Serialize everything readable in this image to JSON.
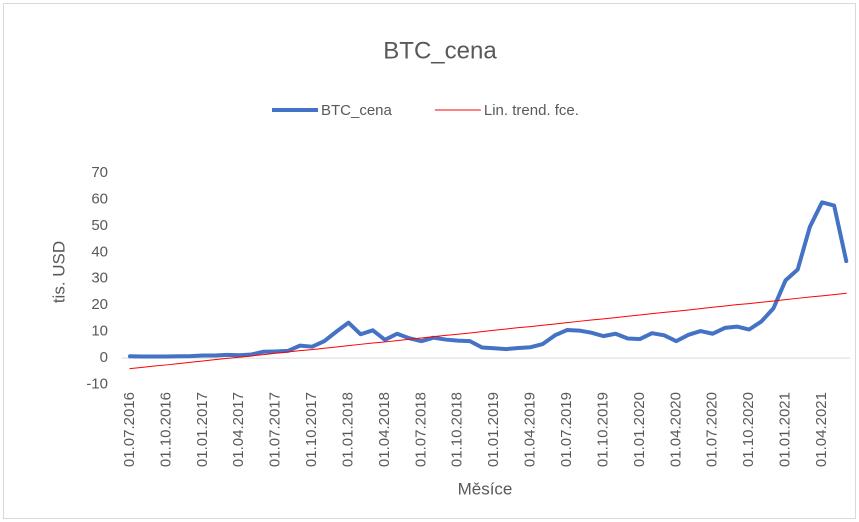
{
  "chart_data": {
    "type": "line",
    "title": "BTC_cena",
    "x_label": "Měsíce",
    "y_label": "tis. USD",
    "categories": [
      "01.07.2016",
      null,
      null,
      "01.10.2016",
      null,
      null,
      "01.01.2017",
      null,
      null,
      "01.04.2017",
      null,
      null,
      "01.07.2017",
      null,
      null,
      "01.10.2017",
      null,
      null,
      "01.01.2018",
      null,
      null,
      "01.04.2018",
      null,
      null,
      "01.07.2018",
      null,
      null,
      "01.10.2018",
      null,
      null,
      "01.01.2019",
      null,
      null,
      "01.04.2019",
      null,
      null,
      "01.07.2019",
      null,
      null,
      "01.10.2019",
      null,
      null,
      "01.01.2020",
      null,
      null,
      "01.04.2020",
      null,
      null,
      "01.07.2020",
      null,
      null,
      "01.10.2020",
      null,
      null,
      "01.01.2021",
      null,
      null,
      "01.04.2021",
      null,
      null
    ],
    "series": [
      {
        "name": "BTC_cena",
        "color": "#4472c4",
        "width": 4,
        "values": [
          0.67,
          0.58,
          0.6,
          0.61,
          0.7,
          0.75,
          0.97,
          0.97,
          1.19,
          1.08,
          1.35,
          2.4,
          2.5,
          2.7,
          4.7,
          4.3,
          6.4,
          10.0,
          13.4,
          9.0,
          10.5,
          6.9,
          9.2,
          7.5,
          6.4,
          7.7,
          7.0,
          6.6,
          6.4,
          4.0,
          3.7,
          3.4,
          3.8,
          4.1,
          5.3,
          8.6,
          10.6,
          10.4,
          9.6,
          8.3,
          9.2,
          7.4,
          7.2,
          9.4,
          8.6,
          6.4,
          8.8,
          10.2,
          9.2,
          11.4,
          11.9,
          10.8,
          13.8,
          18.8,
          29.4,
          33.5,
          49.6,
          58.9,
          57.7,
          36.7
        ]
      },
      {
        "name": "Lin. trend. fce.",
        "color": "#ff0000",
        "width": 1,
        "values": [
          -4.0,
          -3.5,
          -3.0,
          -2.6,
          -2.1,
          -1.6,
          -1.1,
          -0.6,
          -0.1,
          0.3,
          0.8,
          1.3,
          1.8,
          2.3,
          2.8,
          3.2,
          3.7,
          4.2,
          4.7,
          5.2,
          5.7,
          6.1,
          6.6,
          7.1,
          7.6,
          8.1,
          8.6,
          9.0,
          9.5,
          10.0,
          10.5,
          11.0,
          11.5,
          11.9,
          12.4,
          12.9,
          13.4,
          13.9,
          14.4,
          14.8,
          15.3,
          15.8,
          16.3,
          16.8,
          17.3,
          17.7,
          18.2,
          18.7,
          19.2,
          19.7,
          20.2,
          20.6,
          21.1,
          21.6,
          22.1,
          22.6,
          23.1,
          23.5,
          24.0,
          24.5
        ]
      }
    ],
    "ylim": [
      -10,
      70
    ],
    "yticks": [
      -10,
      0,
      10,
      20,
      30,
      40,
      50,
      60,
      70
    ],
    "grid": false,
    "legend": "top"
  }
}
